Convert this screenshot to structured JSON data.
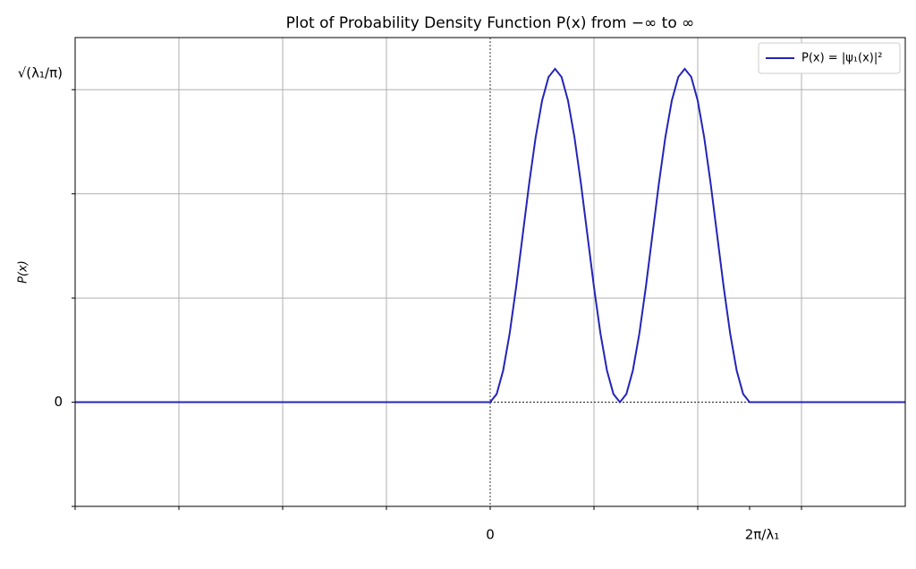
{
  "chart_data": {
    "type": "line",
    "title": "Plot of Probability Density Function P(x) from −∞ to ∞",
    "ylabel": "P(x)",
    "xlim": [
      -4,
      4
    ],
    "ylim": [
      -0.25,
      0.875
    ],
    "xticks": [
      {
        "value": -4,
        "label": null
      },
      {
        "value": -3,
        "label": null
      },
      {
        "value": -2,
        "label": null
      },
      {
        "value": -1,
        "label": null
      },
      0,
      {
        "value": 1,
        "label": null
      },
      {
        "value": 2,
        "label": null
      },
      {
        "value": 3,
        "label": null
      },
      {
        "value": 2.5,
        "label": "2π/λ₁"
      }
    ],
    "yticks": [
      {
        "value": -0.25,
        "label": null
      },
      0,
      {
        "value": 0.25,
        "label": null
      },
      {
        "value": 0.5,
        "label": null
      },
      {
        "value": 0.75,
        "label": "√(λ₁/π)"
      }
    ],
    "grid": true,
    "legend": "upper right",
    "series": [
      {
        "name": "P(x) = |ψ₁(x)|²",
        "color": "#2424b8",
        "x": [
          -4,
          0,
          0.0625,
          0.125,
          0.1875,
          0.25,
          0.3125,
          0.375,
          0.4375,
          0.5,
          0.5625,
          0.625,
          0.6875,
          0.75,
          0.8125,
          0.875,
          0.9375,
          1,
          1.0625,
          1.125,
          1.1875,
          1.25,
          1.3125,
          1.375,
          1.4375,
          1.5,
          1.5625,
          1.625,
          1.6875,
          1.75,
          1.8125,
          1.875,
          1.9375,
          2,
          2.0625,
          2.125,
          2.1875,
          2.25,
          2.3125,
          2.375,
          2.4375,
          2.5,
          4
        ],
        "values": [
          0,
          0,
          0.0196,
          0.0764,
          0.1649,
          0.2764,
          0.4,
          0.5236,
          0.6351,
          0.7236,
          0.7804,
          0.8,
          0.7804,
          0.7236,
          0.6351,
          0.5236,
          0.4,
          0.2764,
          0.1649,
          0.0764,
          0.0196,
          0,
          0.0196,
          0.0764,
          0.1649,
          0.2764,
          0.4,
          0.5236,
          0.6351,
          0.7236,
          0.7804,
          0.8,
          0.7804,
          0.7236,
          0.6351,
          0.5236,
          0.4,
          0.2764,
          0.1649,
          0.0764,
          0.0196,
          0,
          0
        ]
      }
    ]
  }
}
